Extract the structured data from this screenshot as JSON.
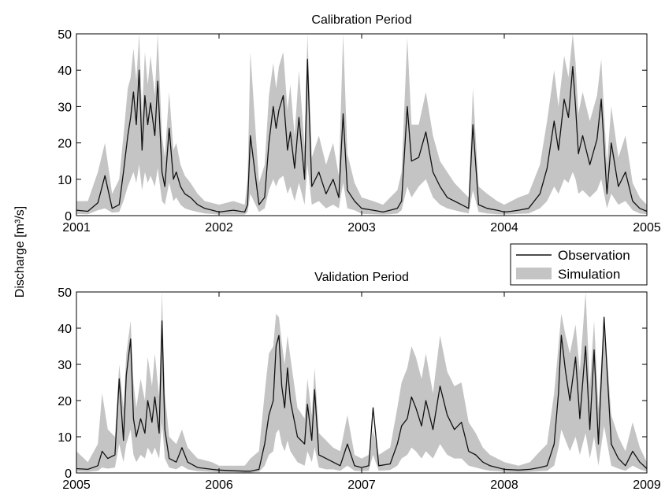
{
  "ylabel": "Discharge [m³/s]",
  "legend": {
    "observation": "Observation",
    "simulation": "Simulation"
  },
  "colors": {
    "observation": "#111111",
    "simulation": "#c4c4c4"
  },
  "chart_data": [
    {
      "type": "area",
      "title": "Calibration Period",
      "ylabel": "Discharge [m³/s]",
      "xlim": [
        2001,
        2005
      ],
      "ylim": [
        0,
        50
      ],
      "xticks": [
        "2001",
        "2002",
        "2003",
        "2004",
        "2005"
      ],
      "yticks": [
        "0",
        "10",
        "20",
        "30",
        "40",
        "50"
      ],
      "series": [
        {
          "name": "Observation",
          "style": "line",
          "x": [
            2001.0,
            2001.08,
            2001.15,
            2001.2,
            2001.25,
            2001.3,
            2001.33,
            2001.36,
            2001.38,
            2001.4,
            2001.42,
            2001.44,
            2001.46,
            2001.48,
            2001.5,
            2001.52,
            2001.55,
            2001.57,
            2001.6,
            2001.62,
            2001.65,
            2001.68,
            2001.7,
            2001.73,
            2001.76,
            2001.8,
            2001.85,
            2001.9,
            2002.0,
            2002.1,
            2002.18,
            2002.2,
            2002.22,
            2002.28,
            2002.32,
            2002.35,
            2002.38,
            2002.4,
            2002.42,
            2002.45,
            2002.48,
            2002.5,
            2002.53,
            2002.56,
            2002.6,
            2002.62,
            2002.65,
            2002.7,
            2002.75,
            2002.8,
            2002.84,
            2002.87,
            2002.9,
            2002.95,
            2003.0,
            2003.08,
            2003.15,
            2003.2,
            2003.25,
            2003.28,
            2003.32,
            2003.35,
            2003.4,
            2003.45,
            2003.5,
            2003.55,
            2003.6,
            2003.65,
            2003.7,
            2003.75,
            2003.78,
            2003.82,
            2003.88,
            2003.95,
            2004.0,
            2004.05,
            2004.1,
            2004.17,
            2004.25,
            2004.3,
            2004.35,
            2004.38,
            2004.42,
            2004.45,
            2004.48,
            2004.5,
            2004.52,
            2004.55,
            2004.6,
            2004.65,
            2004.68,
            2004.72,
            2004.75,
            2004.8,
            2004.85,
            2004.9,
            2004.95,
            2005.0
          ],
          "y": [
            1.5,
            1.2,
            3.5,
            11,
            2,
            3,
            12,
            22,
            27,
            34,
            25,
            40,
            18,
            33,
            25,
            31,
            22,
            37,
            12,
            8,
            24,
            10,
            12,
            8,
            6,
            5,
            3,
            2,
            1,
            1.5,
            1,
            3,
            22,
            3,
            5,
            20,
            30,
            24,
            29,
            33,
            18,
            23,
            13,
            27,
            10,
            43,
            8,
            12,
            6,
            10,
            5,
            28,
            7,
            4,
            2,
            1.5,
            1,
            1.5,
            2,
            4,
            30,
            15,
            16,
            23,
            12,
            8,
            5,
            4,
            3,
            2,
            25,
            3,
            2,
            1.5,
            1,
            1.2,
            1.5,
            2,
            6,
            13,
            26,
            18,
            32,
            27,
            41,
            30,
            17,
            22,
            14,
            21,
            32,
            6,
            20,
            8,
            12,
            4,
            2,
            1.2
          ]
        },
        {
          "name": "Simulation",
          "style": "band",
          "x": [
            2001.0,
            2001.08,
            2001.15,
            2001.2,
            2001.25,
            2001.3,
            2001.33,
            2001.36,
            2001.38,
            2001.4,
            2001.42,
            2001.44,
            2001.46,
            2001.48,
            2001.5,
            2001.52,
            2001.55,
            2001.57,
            2001.6,
            2001.62,
            2001.65,
            2001.68,
            2001.7,
            2001.73,
            2001.76,
            2001.8,
            2001.85,
            2001.9,
            2002.0,
            2002.1,
            2002.18,
            2002.2,
            2002.22,
            2002.28,
            2002.32,
            2002.35,
            2002.38,
            2002.4,
            2002.42,
            2002.45,
            2002.48,
            2002.5,
            2002.53,
            2002.56,
            2002.6,
            2002.62,
            2002.65,
            2002.7,
            2002.75,
            2002.8,
            2002.84,
            2002.87,
            2002.9,
            2002.95,
            2003.0,
            2003.08,
            2003.15,
            2003.2,
            2003.25,
            2003.28,
            2003.32,
            2003.35,
            2003.4,
            2003.45,
            2003.5,
            2003.55,
            2003.6,
            2003.65,
            2003.7,
            2003.75,
            2003.78,
            2003.82,
            2003.88,
            2003.95,
            2004.0,
            2004.05,
            2004.1,
            2004.17,
            2004.25,
            2004.3,
            2004.35,
            2004.38,
            2004.42,
            2004.45,
            2004.48,
            2004.5,
            2004.52,
            2004.55,
            2004.6,
            2004.65,
            2004.68,
            2004.72,
            2004.75,
            2004.8,
            2004.85,
            2004.9,
            2004.95,
            2005.0
          ],
          "lower": [
            0.5,
            0.4,
            1.5,
            2,
            0.8,
            1,
            4,
            8,
            10,
            12,
            9,
            14,
            7,
            12,
            9,
            11,
            8,
            13,
            4,
            3,
            9,
            4,
            5,
            3,
            2,
            1.5,
            1,
            0.6,
            0.3,
            0.3,
            0.3,
            1,
            6,
            1,
            2,
            7,
            10,
            8,
            10,
            11,
            6,
            8,
            4,
            9,
            3,
            14,
            3,
            4,
            2,
            3,
            2,
            9,
            2,
            1.5,
            0.5,
            0.4,
            0.3,
            0.4,
            0.6,
            1.5,
            8,
            5,
            8,
            10,
            5,
            3,
            2,
            1.5,
            1,
            0.6,
            7,
            1,
            0.6,
            0.4,
            0.3,
            0.4,
            0.5,
            0.6,
            2,
            4,
            8,
            6,
            10,
            9,
            12,
            10,
            6,
            7,
            5,
            7,
            10,
            2,
            6,
            3,
            4,
            1.5,
            0.6,
            0.4
          ],
          "upper": [
            4,
            4,
            12,
            20,
            6,
            10,
            22,
            35,
            38,
            46,
            37,
            50,
            28,
            45,
            36,
            44,
            33,
            50,
            22,
            16,
            34,
            18,
            20,
            14,
            11,
            9,
            6,
            4,
            3,
            4,
            3,
            10,
            45,
            9,
            14,
            33,
            42,
            35,
            41,
            45,
            29,
            36,
            22,
            40,
            19,
            50,
            16,
            22,
            14,
            20,
            11,
            50,
            17,
            9,
            5,
            4,
            3,
            5,
            7,
            12,
            49,
            25,
            25,
            34,
            22,
            15,
            12,
            9,
            7,
            5,
            35,
            8,
            6,
            4,
            3,
            4,
            5,
            6,
            14,
            26,
            40,
            30,
            44,
            38,
            50,
            42,
            28,
            34,
            26,
            33,
            43,
            14,
            30,
            16,
            22,
            9,
            5,
            3
          ]
        }
      ]
    },
    {
      "type": "area",
      "title": "Validation Period",
      "ylabel": "Discharge [m³/s]",
      "xlim": [
        2005,
        2009
      ],
      "ylim": [
        0,
        50
      ],
      "xticks": [
        "2005",
        "2006",
        "2007",
        "2008",
        "2009"
      ],
      "yticks": [
        "0",
        "10",
        "20",
        "30",
        "40",
        "50"
      ],
      "series": [
        {
          "name": "Observation",
          "style": "line",
          "x": [
            2005.0,
            2005.08,
            2005.15,
            2005.18,
            2005.22,
            2005.27,
            2005.3,
            2005.33,
            2005.35,
            2005.38,
            2005.4,
            2005.42,
            2005.45,
            2005.48,
            2005.5,
            2005.53,
            2005.55,
            2005.58,
            2005.6,
            2005.62,
            2005.65,
            2005.7,
            2005.74,
            2005.78,
            2005.85,
            2005.95,
            2006.0,
            2006.1,
            2006.18,
            2006.22,
            2006.28,
            2006.32,
            2006.35,
            2006.38,
            2006.4,
            2006.42,
            2006.44,
            2006.46,
            2006.48,
            2006.5,
            2006.55,
            2006.6,
            2006.62,
            2006.65,
            2006.67,
            2006.7,
            2006.75,
            2006.8,
            2006.85,
            2006.9,
            2006.95,
            2007.0,
            2007.05,
            2007.08,
            2007.12,
            2007.2,
            2007.25,
            2007.28,
            2007.32,
            2007.35,
            2007.38,
            2007.42,
            2007.45,
            2007.5,
            2007.55,
            2007.6,
            2007.65,
            2007.7,
            2007.75,
            2007.8,
            2007.85,
            2007.9,
            2007.95,
            2008.0,
            2008.1,
            2008.18,
            2008.25,
            2008.3,
            2008.35,
            2008.38,
            2008.4,
            2008.43,
            2008.46,
            2008.5,
            2008.53,
            2008.57,
            2008.6,
            2008.63,
            2008.66,
            2008.7,
            2008.75,
            2008.8,
            2008.85,
            2008.9,
            2008.95,
            2009.0
          ],
          "y": [
            1.2,
            1,
            2,
            6,
            4,
            5,
            26,
            9,
            27,
            37,
            15,
            10,
            15,
            11,
            20,
            14,
            21,
            11,
            42,
            12,
            4,
            3,
            7,
            3,
            1.5,
            1,
            0.8,
            0.6,
            0.5,
            0.5,
            1,
            8,
            16,
            20,
            35,
            38,
            24,
            18,
            29,
            20,
            10,
            8,
            19,
            9,
            23,
            5,
            4,
            3,
            2,
            8,
            2,
            1.5,
            2,
            18,
            2,
            2.5,
            8,
            13,
            15,
            21,
            18,
            13,
            20,
            12,
            24,
            16,
            12,
            14,
            6,
            5,
            3,
            2,
            1.5,
            1,
            0.8,
            1,
            1.5,
            2,
            8,
            22,
            38,
            28,
            20,
            32,
            15,
            35,
            12,
            34,
            8,
            43,
            8,
            4,
            2,
            6,
            3,
            1.2
          ]
        },
        {
          "name": "Simulation",
          "style": "band",
          "x": [
            2005.0,
            2005.08,
            2005.15,
            2005.18,
            2005.22,
            2005.27,
            2005.3,
            2005.33,
            2005.35,
            2005.38,
            2005.4,
            2005.42,
            2005.45,
            2005.48,
            2005.5,
            2005.53,
            2005.55,
            2005.58,
            2005.6,
            2005.62,
            2005.65,
            2005.7,
            2005.74,
            2005.78,
            2005.85,
            2005.95,
            2006.0,
            2006.1,
            2006.18,
            2006.22,
            2006.28,
            2006.32,
            2006.35,
            2006.38,
            2006.4,
            2006.42,
            2006.44,
            2006.46,
            2006.48,
            2006.5,
            2006.55,
            2006.6,
            2006.62,
            2006.65,
            2006.67,
            2006.7,
            2006.75,
            2006.8,
            2006.85,
            2006.9,
            2006.95,
            2007.0,
            2007.05,
            2007.08,
            2007.12,
            2007.2,
            2007.25,
            2007.28,
            2007.32,
            2007.35,
            2007.38,
            2007.42,
            2007.45,
            2007.5,
            2007.55,
            2007.6,
            2007.65,
            2007.7,
            2007.75,
            2007.8,
            2007.85,
            2007.9,
            2007.95,
            2008.0,
            2008.1,
            2008.18,
            2008.25,
            2008.3,
            2008.35,
            2008.38,
            2008.4,
            2008.43,
            2008.46,
            2008.5,
            2008.53,
            2008.57,
            2008.6,
            2008.63,
            2008.66,
            2008.7,
            2008.75,
            2008.8,
            2008.85,
            2008.9,
            2008.95,
            2009.0
          ],
          "lower": [
            0.4,
            0.3,
            0.6,
            1.5,
            1.2,
            1.5,
            8,
            3,
            8,
            12,
            5,
            3,
            5,
            4,
            7,
            5,
            7,
            4,
            14,
            4,
            1.5,
            1,
            2,
            1,
            0.5,
            0.3,
            0.2,
            0.2,
            0.1,
            0.1,
            0.3,
            2,
            5,
            6,
            11,
            12,
            8,
            6,
            9,
            6,
            3,
            2,
            6,
            3,
            7,
            1.5,
            1,
            1,
            0.6,
            2,
            0.6,
            0.5,
            0.6,
            5,
            0.6,
            0.8,
            2,
            4,
            5,
            7,
            6,
            4,
            6,
            4,
            8,
            5,
            4,
            4,
            2,
            1.5,
            1,
            0.6,
            0.5,
            0.3,
            0.2,
            0.3,
            0.5,
            0.6,
            2,
            7,
            12,
            9,
            6,
            10,
            5,
            11,
            4,
            10,
            2,
            13,
            2,
            1.2,
            0.6,
            2,
            1,
            0.4
          ],
          "upper": [
            6,
            3,
            8,
            22,
            12,
            10,
            30,
            18,
            33,
            42,
            25,
            18,
            26,
            20,
            32,
            24,
            33,
            21,
            50,
            22,
            10,
            8,
            12,
            7,
            4,
            3,
            2,
            2,
            2,
            4,
            6,
            22,
            33,
            35,
            44,
            43,
            36,
            30,
            38,
            32,
            18,
            15,
            26,
            16,
            29,
            11,
            9,
            7,
            6,
            16,
            5,
            4,
            5,
            12,
            5,
            7,
            18,
            25,
            29,
            35,
            32,
            26,
            33,
            22,
            38,
            28,
            24,
            25,
            14,
            11,
            7,
            5,
            4,
            3,
            2,
            3,
            6,
            8,
            22,
            35,
            44,
            38,
            33,
            41,
            28,
            50,
            24,
            42,
            18,
            43,
            16,
            10,
            6,
            14,
            7,
            3
          ]
        }
      ]
    }
  ]
}
